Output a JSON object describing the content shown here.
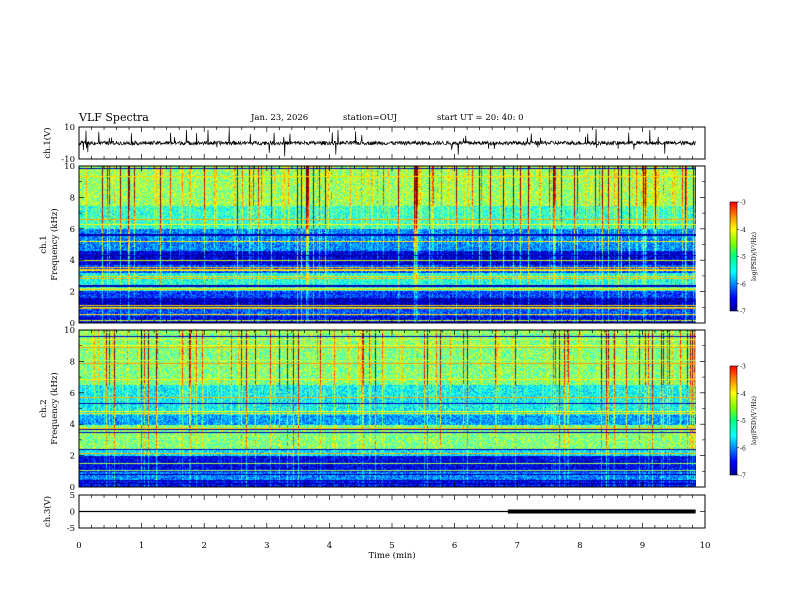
{
  "header": {
    "title": "VLF Spectra",
    "date": "Jan. 23, 2026",
    "station": "station=OUJ",
    "start": "start  UT =   20: 40: 0"
  },
  "colors": {
    "spec_low": "#00008f",
    "spec_mid": "#00ff80",
    "spec_high": "#ff0000",
    "trace": "#000000"
  },
  "chart_data": [
    {
      "type": "line",
      "name": "ch1-waveform",
      "ylabel": "ch.1(V)",
      "ylim": [
        -10,
        10
      ],
      "yticks": [
        "10",
        "-10"
      ],
      "xlim": [
        0,
        10
      ],
      "series": [
        {
          "name": "ch.1",
          "baseline": 0,
          "noise_amplitude": 1.2
        }
      ]
    },
    {
      "type": "heatmap",
      "name": "ch1-spectrogram",
      "ylabel_top": "ch.1",
      "ylabel": "Frequency  (kHz)",
      "ylim": [
        0,
        10
      ],
      "yticks": [
        "0",
        "2",
        "4",
        "6",
        "8",
        "10"
      ],
      "xlim": [
        0,
        9.85
      ],
      "colorbar": {
        "label": "log(PSD)(V²/Hz)",
        "ticks": [
          "-3",
          "-4",
          "-5",
          "-6",
          "-7"
        ],
        "range": [
          -7,
          -3
        ]
      },
      "bands_khz": [
        {
          "from": 0,
          "to": 0.5,
          "level": -6.6
        },
        {
          "from": 0.5,
          "to": 1.0,
          "level": -6.2
        },
        {
          "from": 1.0,
          "to": 1.6,
          "level": -6.8
        },
        {
          "from": 1.6,
          "to": 2.1,
          "level": -6.3
        },
        {
          "from": 2.1,
          "to": 3.2,
          "level": -5.4
        },
        {
          "from": 3.2,
          "to": 3.7,
          "level": -6.2
        },
        {
          "from": 3.7,
          "to": 4.6,
          "level": -6.7
        },
        {
          "from": 4.6,
          "to": 6.0,
          "level": -6.0
        },
        {
          "from": 6.0,
          "to": 7.5,
          "level": -5.3
        },
        {
          "from": 7.5,
          "to": 10.0,
          "level": -4.9
        }
      ]
    },
    {
      "type": "heatmap",
      "name": "ch2-spectrogram",
      "ylabel_top": "ch.2",
      "ylabel": "Frequency  (kHz)",
      "ylim": [
        0,
        10
      ],
      "yticks": [
        "0",
        "2",
        "4",
        "6",
        "8",
        "10"
      ],
      "xlim": [
        0,
        9.85
      ],
      "colorbar": {
        "label": "log(PSD)(V²/Hz)",
        "ticks": [
          "-3",
          "-4",
          "-5",
          "-6",
          "-7"
        ],
        "range": [
          -7,
          -3
        ]
      },
      "bands_khz": [
        {
          "from": 0,
          "to": 0.5,
          "level": -6.5
        },
        {
          "from": 0.5,
          "to": 1.0,
          "level": -6.0
        },
        {
          "from": 1.0,
          "to": 2.0,
          "level": -6.6
        },
        {
          "from": 2.0,
          "to": 2.4,
          "level": -5.6
        },
        {
          "from": 2.4,
          "to": 4.0,
          "level": -5.0
        },
        {
          "from": 4.0,
          "to": 4.6,
          "level": -5.9
        },
        {
          "from": 4.6,
          "to": 6.5,
          "level": -5.5
        },
        {
          "from": 6.5,
          "to": 10.0,
          "level": -5.0
        }
      ]
    },
    {
      "type": "line",
      "name": "ch3-line",
      "ylabel": "ch.3(V)",
      "ylim": [
        -5,
        5
      ],
      "yticks": [
        "5",
        "0",
        "-5"
      ],
      "xlim": [
        0,
        10
      ],
      "series": [
        {
          "name": "ch.3",
          "value": 0,
          "thick_from_min": 6.85,
          "until_min": 9.85
        }
      ]
    }
  ],
  "xaxis": {
    "label": "Time  (min)",
    "ticks": [
      "0",
      "1",
      "2",
      "3",
      "4",
      "5",
      "6",
      "7",
      "8",
      "9",
      "10"
    ],
    "range": [
      0,
      10
    ]
  }
}
